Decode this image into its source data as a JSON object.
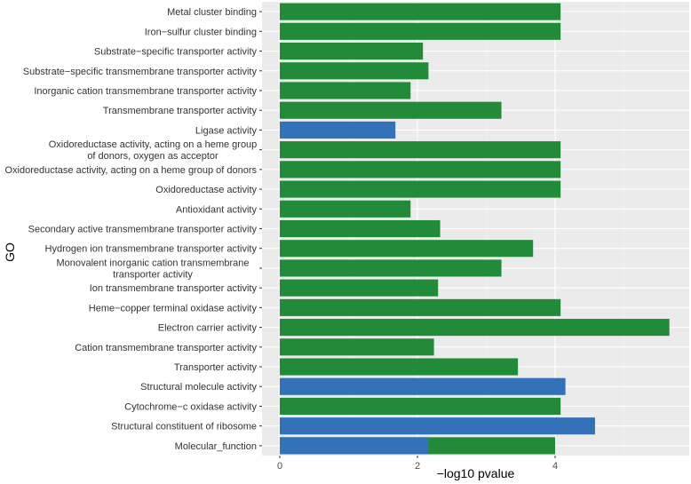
{
  "chart_data": {
    "type": "bar",
    "orientation": "horizontal",
    "title": "",
    "xlabel": "−log10 pvalue",
    "ylabel": "GO",
    "xlim": [
      -0.2,
      5.9
    ],
    "xticks": [
      0,
      2,
      4
    ],
    "grid": true,
    "categories": [
      [
        "Metal cluster binding"
      ],
      [
        "Iron−sulfur cluster binding"
      ],
      [
        "Substrate−specific transporter activity"
      ],
      [
        "Substrate−specific transmembrane transporter activity"
      ],
      [
        "Inorganic cation transmembrane transporter activity"
      ],
      [
        "Transmembrane transporter activity"
      ],
      [
        "Ligase activity"
      ],
      [
        "Oxidoreductase activity, acting on a heme group",
        "of donors, oxygen as acceptor"
      ],
      [
        "Oxidoreductase activity, acting on a heme group of donors"
      ],
      [
        "Oxidoreductase activity"
      ],
      [
        "Antioxidant activity"
      ],
      [
        "Secondary active transmembrane transporter activity"
      ],
      [
        "Hydrogen ion transmembrane transporter activity"
      ],
      [
        "Monovalent inorganic cation transmembrane",
        "transporter activity"
      ],
      [
        "Ion transmembrane transporter activity"
      ],
      [
        "Heme−copper terminal oxidase activity"
      ],
      [
        "Electron carrier activity"
      ],
      [
        "Cation transmembrane transporter activity"
      ],
      [
        "Transporter activity"
      ],
      [
        "Structural molecule activity"
      ],
      [
        "Cytochrome−c oxidase activity"
      ],
      [
        "Structural constituent of ribosome"
      ],
      [
        "Molecular_function"
      ]
    ],
    "series": [
      {
        "name": "green",
        "color": "#228b3a",
        "values": [
          4.08,
          4.08,
          2.08,
          2.16,
          1.9,
          3.22,
          0,
          4.08,
          4.08,
          4.08,
          1.9,
          2.33,
          3.68,
          3.22,
          2.3,
          4.08,
          5.66,
          2.24,
          3.46,
          0,
          4.08,
          0,
          4.0
        ]
      },
      {
        "name": "blue",
        "color": "#3371b8",
        "values": [
          0,
          0,
          0,
          0,
          0,
          0,
          1.68,
          0,
          0,
          0,
          0,
          0,
          0,
          0,
          0,
          0,
          0,
          0,
          0,
          4.15,
          0,
          4.58,
          2.16
        ]
      }
    ]
  },
  "colors": {
    "panel": "#ebebeb",
    "grid_major": "#ffffff",
    "grid_minor": "#f5f5f5"
  }
}
